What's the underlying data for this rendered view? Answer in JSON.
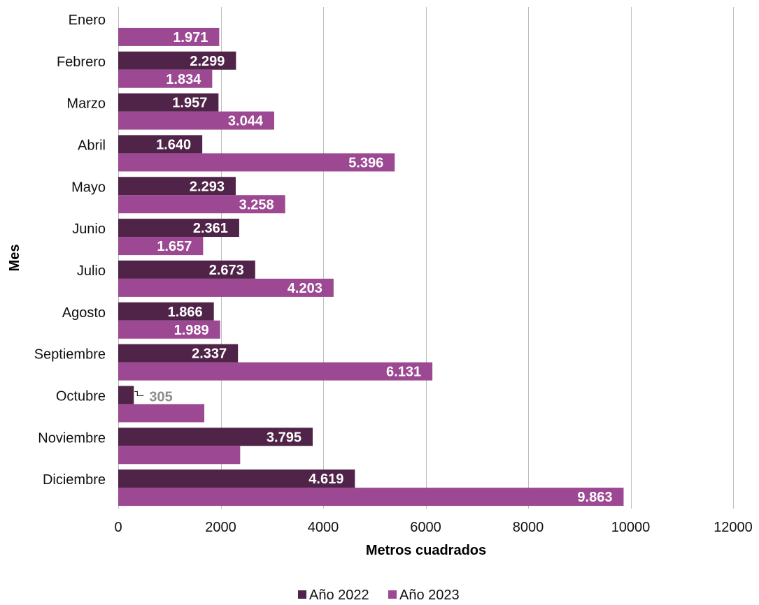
{
  "chart_data": {
    "type": "bar",
    "orientation": "horizontal",
    "categories": [
      "Enero",
      "Febrero",
      "Marzo",
      "Abril",
      "Mayo",
      "Junio",
      "Julio",
      "Agosto",
      "Septiembre",
      "Octubre",
      "Noviembre",
      "Diciembre"
    ],
    "series": [
      {
        "name": "Año 2022",
        "color": "#4f2448",
        "values": [
          null,
          2299,
          1957,
          1640,
          2293,
          2361,
          2673,
          1866,
          2337,
          305,
          3795,
          4619
        ],
        "labels": [
          "",
          "2.299",
          "1.957",
          "1.640",
          "2.293",
          "2.361",
          "2.673",
          "1.866",
          "2.337",
          "305",
          "3.795",
          "4.619"
        ]
      },
      {
        "name": "Año 2023",
        "color": "#9c4892",
        "values": [
          1971,
          1834,
          3044,
          5396,
          3258,
          1657,
          4203,
          1989,
          6131,
          1680,
          2380,
          9863
        ],
        "labels": [
          "1.971",
          "1.834",
          "3.044",
          "5.396",
          "3.258",
          "1.657",
          "4.203",
          "1.989",
          "6.131",
          "",
          "",
          "9.863"
        ]
      }
    ],
    "xlabel": "Metros cuadrados",
    "ylabel": "Mes",
    "xlim": [
      0,
      12000
    ],
    "xticks": [
      0,
      2000,
      4000,
      6000,
      8000,
      10000,
      12000
    ],
    "xtick_labels": [
      "0",
      "2000",
      "4000",
      "6000",
      "8000",
      "10000",
      "12000"
    ],
    "grid": "vertical",
    "legend_position": "bottom"
  }
}
